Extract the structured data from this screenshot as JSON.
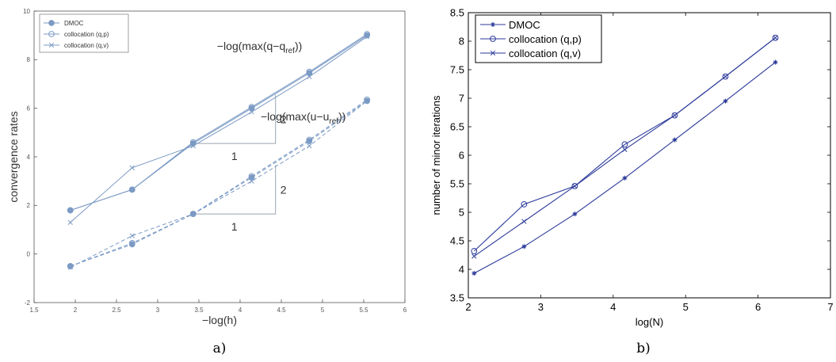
{
  "chart_data": [
    {
      "type": "line",
      "panel_label": "a)",
      "xlabel": "−log(h)",
      "ylabel": "convergence rates",
      "xlim": [
        1.5,
        6
      ],
      "ylim": [
        -2,
        10
      ],
      "xticks": [
        1.5,
        2,
        2.5,
        3,
        3.5,
        4,
        4.5,
        5,
        5.5,
        6
      ],
      "xtick_labels": [
        "1.5",
        "2",
        "2.5",
        "3",
        "3.5",
        "4",
        "4.5",
        "5",
        "5.5",
        "6"
      ],
      "yticks": [
        -2,
        0,
        2,
        4,
        6,
        8,
        10
      ],
      "ytick_labels": [
        "-2",
        "0",
        "2",
        "4",
        "6",
        "8",
        "10"
      ],
      "grid": false,
      "legend_position": "top-left",
      "legend": [
        "DMOC",
        "collocation (q,p)",
        "collocation (q,v)"
      ],
      "x": [
        1.94,
        2.69,
        3.43,
        4.14,
        4.84,
        5.54
      ],
      "series": [
        {
          "name": "DMOC",
          "group": "q",
          "marker": "dot",
          "values": [
            1.8,
            2.65,
            4.55,
            6.0,
            7.45,
            9.0
          ]
        },
        {
          "name": "collocation (q,p)",
          "group": "q",
          "marker": "circle",
          "values": [
            1.8,
            2.65,
            4.6,
            6.05,
            7.5,
            9.05
          ]
        },
        {
          "name": "collocation (q,v)",
          "group": "q",
          "marker": "x",
          "values": [
            1.3,
            3.55,
            4.45,
            5.85,
            7.3,
            8.95
          ]
        },
        {
          "name": "DMOC",
          "group": "u",
          "marker": "dot",
          "dashed": true,
          "values": [
            -0.5,
            0.4,
            1.65,
            3.15,
            4.65,
            6.3
          ]
        },
        {
          "name": "collocation (q,p)",
          "group": "u",
          "marker": "circle",
          "dashed": true,
          "values": [
            -0.5,
            0.45,
            1.65,
            3.2,
            4.7,
            6.35
          ]
        },
        {
          "name": "collocation (q,v)",
          "group": "u",
          "marker": "x",
          "dashed": true,
          "values": [
            -0.55,
            0.75,
            1.65,
            3.0,
            4.45,
            6.3
          ]
        }
      ],
      "slope_triangles": [
        {
          "x0": 3.43,
          "x1": 4.43,
          "y0": 4.55,
          "y1": 6.55,
          "run_label": "1",
          "rise_label": "2"
        },
        {
          "x0": 3.43,
          "x1": 4.43,
          "y0": 1.65,
          "y1": 3.65,
          "run_label": "1",
          "rise_label": "2"
        }
      ],
      "annotations": [
        {
          "text": "−log(max(q−q",
          "subscript": "ref",
          "suffix": "))",
          "x": 3.72,
          "y": 8.4
        },
        {
          "text": "−log(max(u−u",
          "subscript": "ref",
          "suffix": "))",
          "x": 4.25,
          "y": 5.5
        }
      ],
      "colors": {
        "series": "#7b9ac4",
        "triangle": "#9aa4b2",
        "axis": "#555555"
      }
    },
    {
      "type": "line",
      "panel_label": "b)",
      "xlabel": "log(N)",
      "ylabel": "number of minor iterations",
      "xlim": [
        2,
        7
      ],
      "ylim": [
        3.5,
        8.5
      ],
      "xticks": [
        2,
        3,
        4,
        5,
        6,
        7
      ],
      "xtick_labels": [
        "2",
        "3",
        "4",
        "5",
        "6",
        "7"
      ],
      "yticks": [
        3.5,
        4,
        4.5,
        5,
        5.5,
        6,
        6.5,
        7,
        7.5,
        8,
        8.5
      ],
      "ytick_labels": [
        "3.5",
        "4",
        "4.5",
        "5",
        "5.5",
        "6",
        "6.5",
        "7",
        "7.5",
        "8",
        "8.5"
      ],
      "grid": false,
      "legend_position": "top-left",
      "x": [
        2.08,
        2.77,
        3.47,
        4.16,
        4.85,
        5.55,
        6.24
      ],
      "series": [
        {
          "name": "DMOC",
          "marker": "star",
          "values": [
            3.93,
            4.4,
            4.97,
            5.6,
            6.27,
            6.95,
            7.63
          ]
        },
        {
          "name": "collocation (q,p)",
          "marker": "circle",
          "values": [
            4.32,
            5.14,
            5.46,
            6.19,
            6.7,
            7.38,
            8.06
          ]
        },
        {
          "name": "collocation (q,v)",
          "marker": "x",
          "values": [
            4.23,
            4.84,
            5.46,
            6.1,
            6.7,
            7.38,
            8.06
          ]
        }
      ],
      "colors": {
        "series": "#2b3a9a",
        "axis": "#000000"
      }
    }
  ]
}
